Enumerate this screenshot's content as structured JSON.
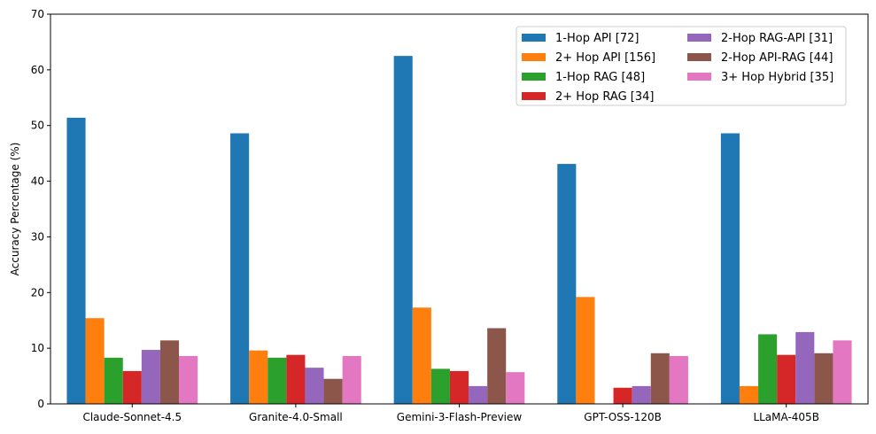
{
  "chart_data": {
    "type": "bar",
    "title": "",
    "xlabel": "",
    "ylabel": "Accuracy Percentage (%)",
    "ylim": [
      0,
      70
    ],
    "yticks": [
      "0",
      "10",
      "20",
      "30",
      "40",
      "50",
      "60",
      "70"
    ],
    "grid": false,
    "legend_position": "top-right",
    "legend_columns": 2,
    "categories": [
      "Claude-Sonnet-4.5",
      "Granite-4.0-Small",
      "Gemini-3-Flash-Preview",
      "GPT-OSS-120B",
      "LLaMA-405B"
    ],
    "series": [
      {
        "name": "1-Hop API [72]",
        "color": "#1f77b4",
        "values": [
          51.4,
          48.6,
          62.5,
          43.1,
          48.6
        ]
      },
      {
        "name": "2+ Hop API [156]",
        "color": "#ff7f0e",
        "values": [
          15.4,
          9.6,
          17.3,
          19.2,
          3.2
        ]
      },
      {
        "name": "1-Hop RAG [48]",
        "color": "#2ca02c",
        "values": [
          8.3,
          8.3,
          6.3,
          0.0,
          12.5
        ]
      },
      {
        "name": "2+ Hop RAG [34]",
        "color": "#d62728",
        "values": [
          5.9,
          8.8,
          5.9,
          2.9,
          8.8
        ]
      },
      {
        "name": "2-Hop RAG-API [31]",
        "color": "#9467bd",
        "values": [
          9.7,
          6.5,
          3.2,
          3.2,
          12.9
        ]
      },
      {
        "name": "2-Hop API-RAG [44]",
        "color": "#8c564b",
        "values": [
          11.4,
          4.5,
          13.6,
          9.1,
          9.1
        ]
      },
      {
        "name": "3+ Hop Hybrid [35]",
        "color": "#e377c2",
        "values": [
          8.6,
          8.6,
          5.7,
          8.6,
          11.4
        ]
      }
    ]
  }
}
